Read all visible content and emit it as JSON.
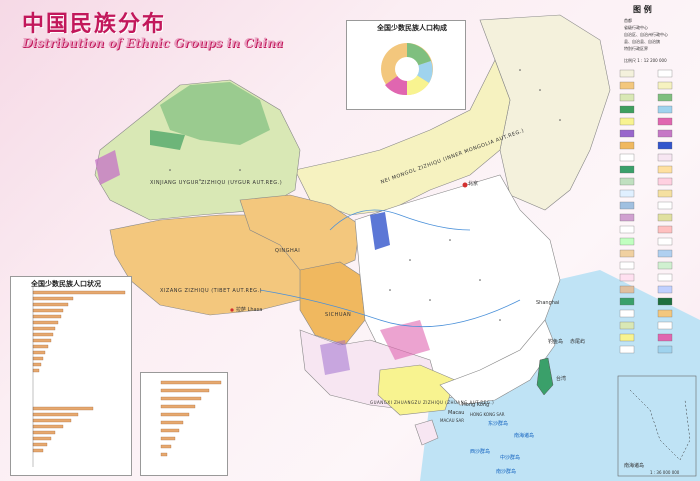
{
  "title_cn": "中国民族分布",
  "title_en": "Distribution of Ethnic Groups in China",
  "legend": {
    "title": "图 例",
    "keys": [
      "首都",
      "省级行政中心",
      "自治区、自治州行政中心",
      "县、自治县、自治旗",
      "特别行政区界"
    ],
    "scale": "比例尺 1 : 12 200 000"
  },
  "pie_chart": {
    "title": "全国少数民族人口构成"
  },
  "bar_chart": {
    "title": "全国少数民族人口状况"
  },
  "regions": [
    {
      "id": "xinjiang",
      "label": "XINJIANG UYGUR ZIZHIQU (UYGUR AUT.REG.)"
    },
    {
      "id": "tibet",
      "label": "XIZANG ZIZHIQU (TIBET AUT.REG.)"
    },
    {
      "id": "inner-mongolia",
      "label": "NEI MONGOL ZIZHIQU (INNER MONGOLIA AUT.REG.)"
    },
    {
      "id": "qinghai",
      "label": "QINGHAI"
    },
    {
      "id": "sichuan",
      "label": "SICHUAN"
    },
    {
      "id": "guangxi",
      "label": "GUANGXI ZHUANGZU ZIZHIQU (ZHUANG AUT.REG.)"
    }
  ],
  "places": [
    "北京",
    "拉萨 Lhasa",
    "Shanghai",
    "Hong Kong",
    "Macau",
    "HONG KONG SAR",
    "MACAU SAR",
    "台湾",
    "钓鱼岛",
    "赤尾屿"
  ],
  "seas": [
    "南海诸岛",
    "东沙群岛",
    "西沙群岛",
    "中沙群岛",
    "南沙群岛"
  ],
  "inset": {
    "title": "南海诸岛",
    "scale": "1 : 36 000 000"
  },
  "colors": {
    "title": "#c2185b",
    "sea": "#bfe3f5",
    "xinjiang": "#d9e8b5",
    "tibet": "#f3c77d",
    "mongolia": "#f6f2c0",
    "han": "#ffffff",
    "border": "#777777"
  }
}
